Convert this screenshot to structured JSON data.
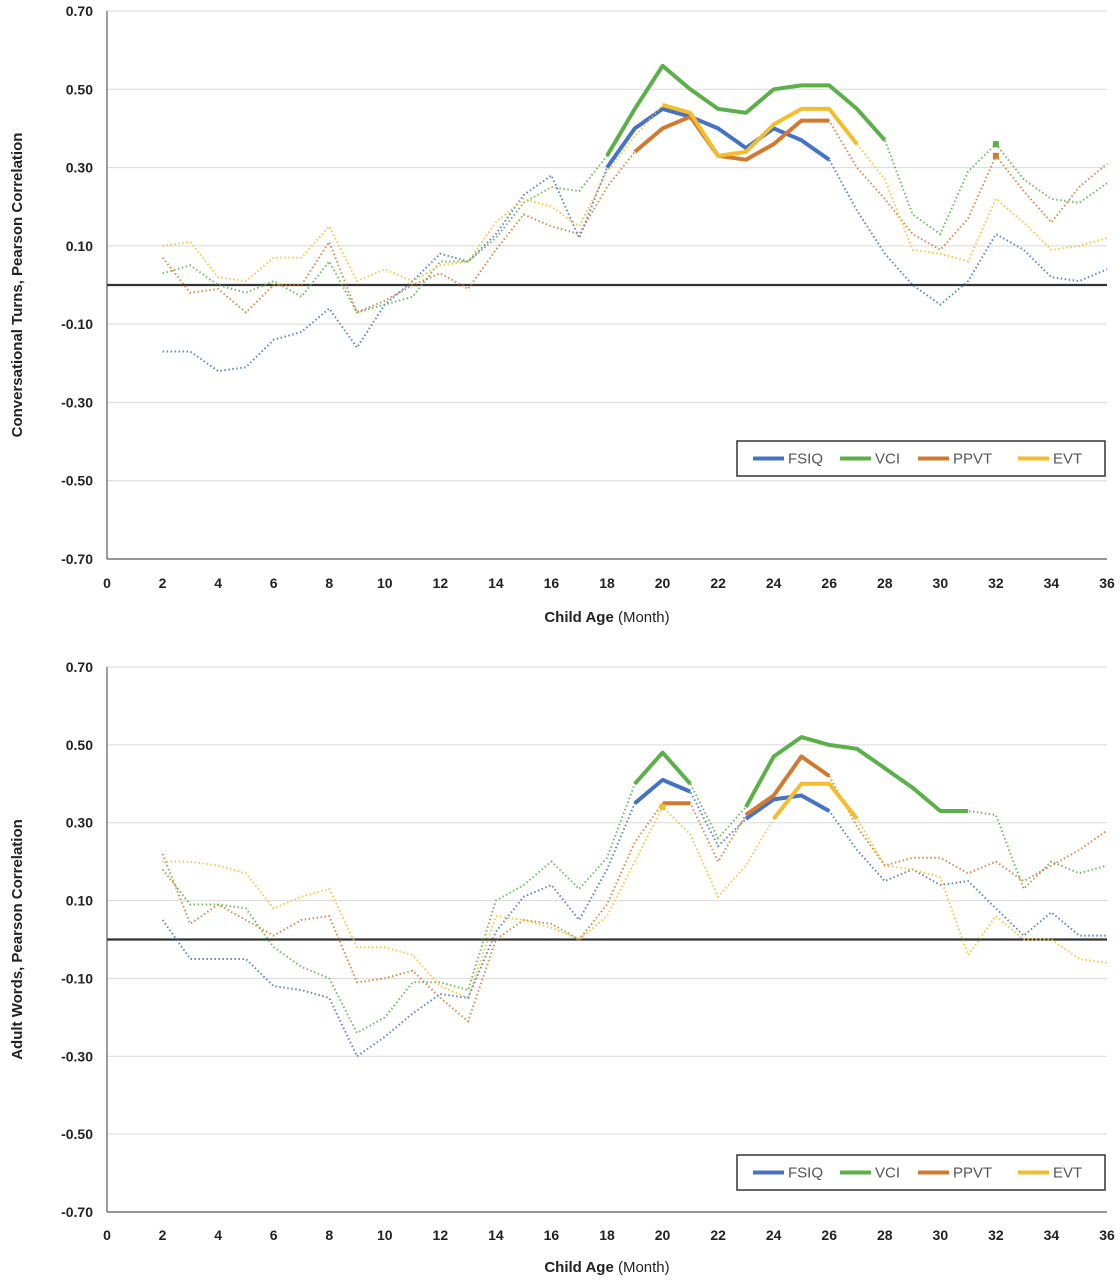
{
  "chart_data": [
    {
      "type": "line",
      "ylabel": "Conversational Turns, Pearson Correlation",
      "xlabel_bold": "Child Age",
      "xlabel_unit": "(Month)",
      "ylim": [
        -0.7,
        0.7
      ],
      "yticks": [
        "0.70",
        "0.50",
        "0.30",
        "0.10",
        "-0.10",
        "-0.30",
        "-0.50",
        "-0.70"
      ],
      "xlim": [
        0,
        36
      ],
      "xticks": [
        "0",
        "2",
        "4",
        "6",
        "8",
        "10",
        "12",
        "14",
        "16",
        "18",
        "20",
        "22",
        "24",
        "26",
        "28",
        "30",
        "32",
        "34",
        "36"
      ],
      "grid": true,
      "legend_position": "bottom-right",
      "x": [
        2,
        3,
        4,
        5,
        6,
        7,
        8,
        9,
        10,
        11,
        12,
        13,
        14,
        15,
        16,
        17,
        18,
        19,
        20,
        21,
        22,
        23,
        24,
        25,
        26,
        27,
        28,
        29,
        30,
        31,
        32,
        33,
        34,
        35,
        36
      ],
      "series": [
        {
          "name": "FSIQ",
          "color": "#4472C4",
          "values": [
            -0.17,
            -0.17,
            -0.22,
            -0.21,
            -0.14,
            -0.12,
            -0.06,
            -0.16,
            -0.05,
            0.01,
            0.08,
            0.06,
            0.13,
            0.23,
            0.28,
            0.12,
            0.3,
            0.4,
            0.45,
            0.43,
            0.4,
            0.35,
            0.4,
            0.37,
            0.32,
            0.19,
            0.08,
            0.0,
            -0.05,
            0.01,
            0.13,
            0.09,
            0.02,
            0.01,
            0.04
          ],
          "significant": [
            [
              18,
              26
            ]
          ]
        },
        {
          "name": "VCI",
          "color": "#5BB04A",
          "values": [
            0.03,
            0.05,
            0.0,
            -0.02,
            0.01,
            -0.03,
            0.06,
            -0.07,
            -0.05,
            -0.03,
            0.06,
            0.06,
            0.12,
            0.21,
            0.25,
            0.24,
            0.33,
            0.45,
            0.56,
            0.5,
            0.45,
            0.44,
            0.5,
            0.51,
            0.51,
            0.45,
            0.37,
            0.18,
            0.13,
            0.29,
            0.36,
            0.27,
            0.22,
            0.21,
            0.26
          ],
          "significant": [
            [
              18,
              28
            ],
            [
              32,
              32
            ]
          ]
        },
        {
          "name": "PPVT",
          "color": "#D2782F",
          "values": [
            0.07,
            -0.02,
            -0.01,
            -0.07,
            0.0,
            0.0,
            0.11,
            -0.07,
            -0.04,
            0.0,
            0.03,
            -0.01,
            0.09,
            0.18,
            0.15,
            0.13,
            0.25,
            0.34,
            0.4,
            0.43,
            0.33,
            0.32,
            0.36,
            0.42,
            0.42,
            0.3,
            0.22,
            0.13,
            0.09,
            0.17,
            0.33,
            0.24,
            0.16,
            0.25,
            0.31
          ],
          "significant": [
            [
              19,
              26
            ],
            [
              32,
              32
            ]
          ]
        },
        {
          "name": "EVT",
          "color": "#F2BE2C",
          "values": [
            0.1,
            0.11,
            0.02,
            0.01,
            0.07,
            0.07,
            0.15,
            0.01,
            0.04,
            0.01,
            0.05,
            0.06,
            0.16,
            0.22,
            0.2,
            0.15,
            0.29,
            0.38,
            0.46,
            0.44,
            0.33,
            0.34,
            0.41,
            0.45,
            0.45,
            0.36,
            0.27,
            0.09,
            0.08,
            0.06,
            0.22,
            0.16,
            0.09,
            0.1,
            0.12
          ],
          "significant": [
            [
              20,
              27
            ]
          ]
        }
      ]
    },
    {
      "type": "line",
      "ylabel": "Adult Words, Pearson Correlation",
      "xlabel_bold": "Child Age",
      "xlabel_unit": "(Month)",
      "ylim": [
        -0.7,
        0.7
      ],
      "yticks": [
        "0.70",
        "0.50",
        "0.30",
        "0.10",
        "-0.10",
        "-0.30",
        "-0.50",
        "-0.70"
      ],
      "xlim": [
        0,
        36
      ],
      "xticks": [
        "0",
        "2",
        "4",
        "6",
        "8",
        "10",
        "12",
        "14",
        "16",
        "18",
        "20",
        "22",
        "24",
        "26",
        "28",
        "30",
        "32",
        "34",
        "36"
      ],
      "grid": true,
      "legend_position": "bottom-right",
      "x": [
        2,
        3,
        4,
        5,
        6,
        7,
        8,
        9,
        10,
        11,
        12,
        13,
        14,
        15,
        16,
        17,
        18,
        19,
        20,
        21,
        22,
        23,
        24,
        25,
        26,
        27,
        28,
        29,
        30,
        31,
        32,
        33,
        34,
        35,
        36
      ],
      "series": [
        {
          "name": "FSIQ",
          "color": "#4472C4",
          "values": [
            0.05,
            -0.05,
            -0.05,
            -0.05,
            -0.12,
            -0.13,
            -0.15,
            -0.3,
            -0.25,
            -0.19,
            -0.14,
            -0.15,
            0.02,
            0.11,
            0.14,
            0.05,
            0.18,
            0.35,
            0.41,
            0.38,
            0.24,
            0.31,
            0.36,
            0.37,
            0.33,
            0.23,
            0.15,
            0.18,
            0.14,
            0.15,
            0.08,
            0.01,
            0.07,
            0.01,
            0.01
          ],
          "significant": [
            [
              19,
              21
            ],
            [
              23,
              26
            ]
          ]
        },
        {
          "name": "VCI",
          "color": "#5BB04A",
          "values": [
            0.18,
            0.09,
            0.09,
            0.08,
            -0.02,
            -0.07,
            -0.1,
            -0.24,
            -0.2,
            -0.11,
            -0.11,
            -0.13,
            0.1,
            0.14,
            0.2,
            0.13,
            0.21,
            0.4,
            0.48,
            0.4,
            0.26,
            0.34,
            0.47,
            0.52,
            0.5,
            0.49,
            0.44,
            0.39,
            0.33,
            0.33,
            0.32,
            0.13,
            0.2,
            0.17,
            0.19
          ],
          "significant": [
            [
              19,
              21
            ],
            [
              23,
              31
            ]
          ]
        },
        {
          "name": "PPVT",
          "color": "#D2782F",
          "values": [
            0.22,
            0.04,
            0.09,
            0.05,
            0.01,
            0.05,
            0.06,
            -0.11,
            -0.1,
            -0.08,
            -0.15,
            -0.21,
            0.0,
            0.05,
            0.04,
            0.0,
            0.09,
            0.25,
            0.35,
            0.35,
            0.2,
            0.32,
            0.37,
            0.47,
            0.42,
            0.29,
            0.19,
            0.21,
            0.21,
            0.17,
            0.2,
            0.15,
            0.19,
            0.23,
            0.28
          ],
          "significant": [
            [
              20,
              21
            ],
            [
              23,
              26
            ]
          ]
        },
        {
          "name": "EVT",
          "color": "#F2BE2C",
          "values": [
            0.2,
            0.2,
            0.19,
            0.17,
            0.08,
            0.11,
            0.13,
            -0.02,
            -0.02,
            -0.04,
            -0.12,
            -0.15,
            0.06,
            0.05,
            0.03,
            0.0,
            0.06,
            0.2,
            0.34,
            0.27,
            0.11,
            0.19,
            0.31,
            0.4,
            0.4,
            0.31,
            0.19,
            0.18,
            0.16,
            -0.04,
            0.06,
            0.0,
            0.0,
            -0.05,
            -0.06
          ],
          "significant": [
            [
              20,
              20
            ],
            [
              24,
              27
            ]
          ]
        }
      ]
    }
  ]
}
